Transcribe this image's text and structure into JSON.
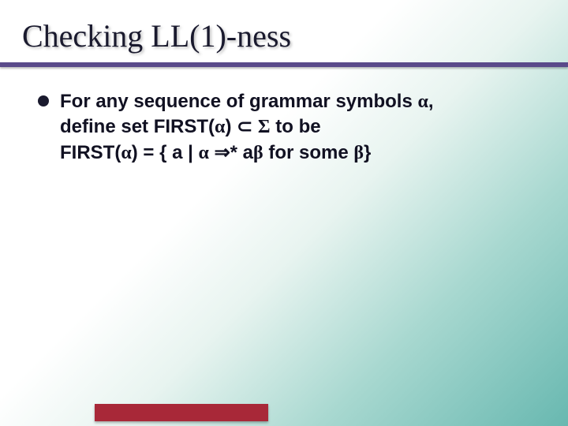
{
  "slide": {
    "title": "Checking LL(1)-ness",
    "title_font": "Times New Roman",
    "title_fontsize": 40,
    "title_color": "#1a1a2e",
    "underline_color": "#5a4a8a",
    "background_gradient": [
      "#ffffff",
      "#e8f4f0",
      "#a8d8d0",
      "#68b8b0"
    ],
    "bullet": {
      "line1_pre": "For any sequence of grammar symbols ",
      "alpha1": "α",
      "line1_post": ",",
      "line2_pre": "define set FIRST(",
      "alpha2": "α",
      "line2_mid": ") ",
      "subset": "⊂",
      "space1": " ",
      "sigma": "Σ",
      "line2_post": " to be",
      "line3_pre": "FIRST(",
      "alpha3": "α",
      "line3_mid1": ") = { a | ",
      "alpha4": "α",
      "space2": " ",
      "derives": "⇒",
      "star": "* a",
      "beta1": "β",
      "line3_mid2": " for some ",
      "beta2": "β",
      "line3_post": "}"
    },
    "bullet_color": "#1a1a2e",
    "body_fontsize": 24,
    "body_color": "#111122",
    "bottom_bar_color": "#a82838"
  }
}
